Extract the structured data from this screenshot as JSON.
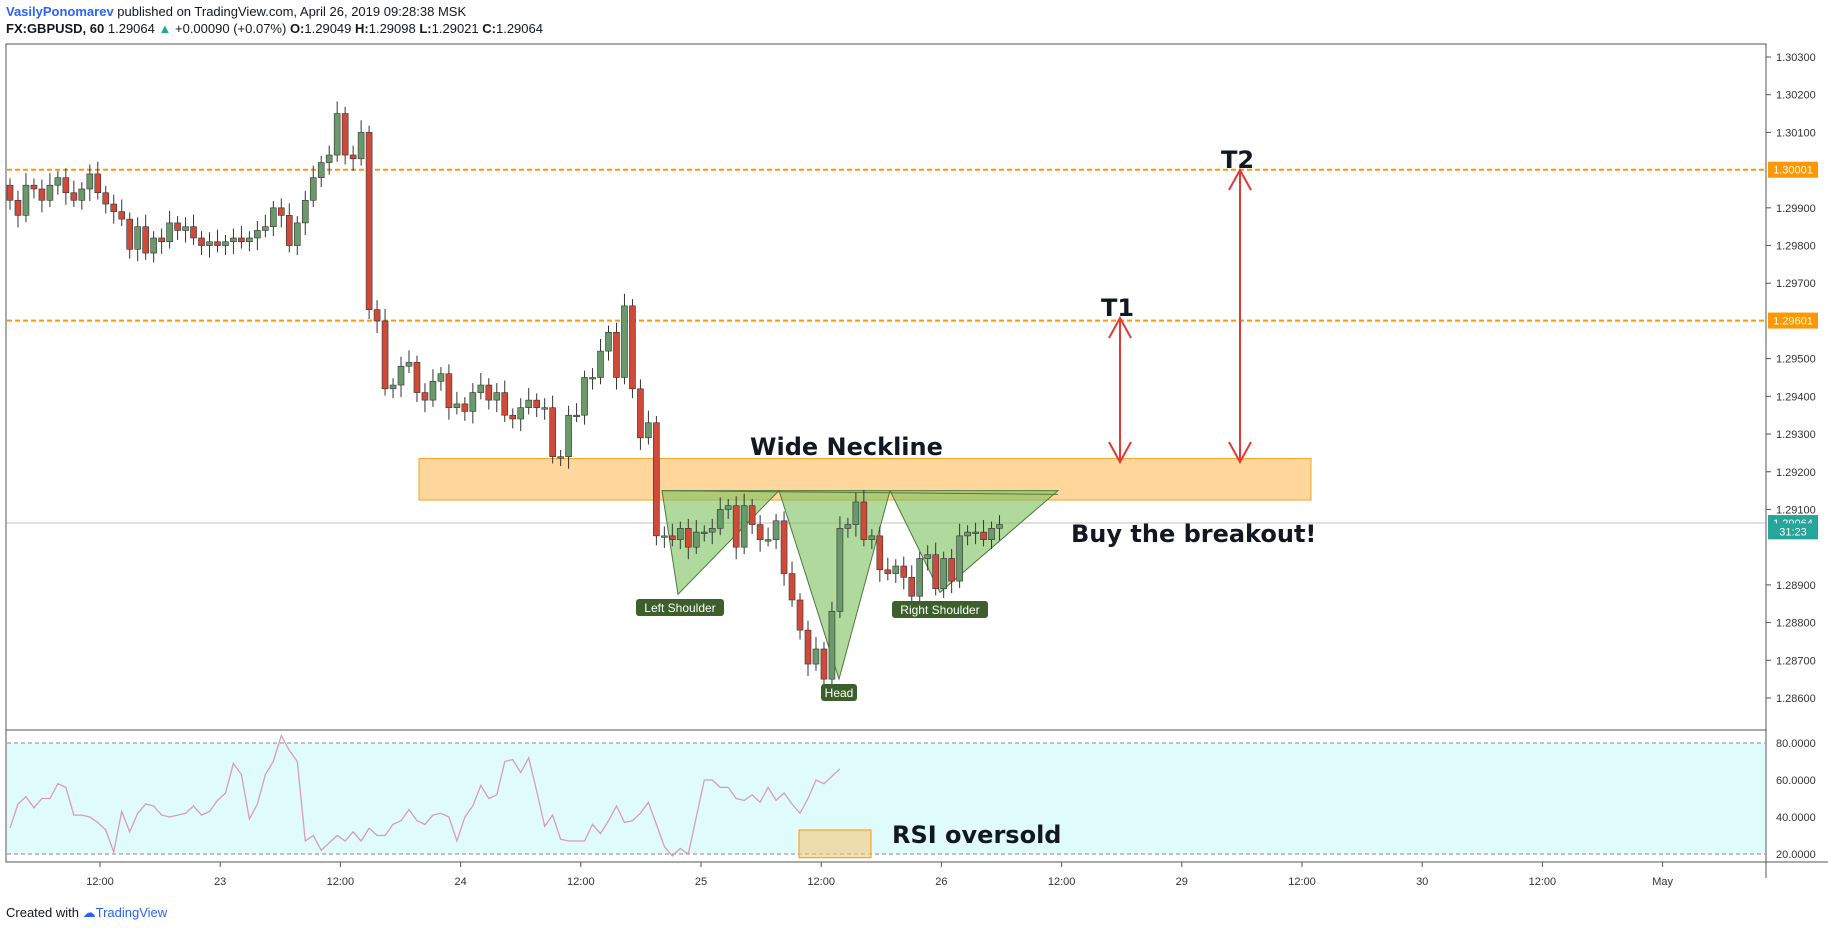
{
  "header": {
    "author": "VasilyPonomarev",
    "published_text": "published on TradingView.com, April 26, 2019 09:28:38 MSK",
    "symbol": "FX:GBPUSD, 60",
    "last": "1.29064",
    "change": "+0.00090 (+0.07%)",
    "o_label": "O:",
    "o_value": "1.29049",
    "h_label": "H:",
    "h_value": "1.29098",
    "l_label": "L:",
    "l_value": "1.29021",
    "c_label": "C:",
    "c_value": "1.29064"
  },
  "footer": {
    "created_with": "Created with",
    "brand": "TradingView"
  },
  "colors": {
    "up": "#26a69a",
    "down": "#ef5350",
    "up_body": "#6a9a6a",
    "down_body": "#d04a3a",
    "orange": "#ff9800",
    "rsi_line": "#d99ac0",
    "rsi_bg": "#e0fbfc",
    "pattern": "#7bbf5e",
    "arrow": "#e53935"
  },
  "chart_data": [
    {
      "type": "candlestick",
      "symbol": "GBPUSD",
      "timeframe": "60",
      "ylim": [
        1.2855,
        1.3034
      ],
      "x_ticks": [
        "12:00",
        "23",
        "12:00",
        "24",
        "12:00",
        "25",
        "12:00",
        "26",
        "12:00",
        "29",
        "12:00",
        "30",
        "12:00",
        "May"
      ],
      "y_ticks": [
        "1.30300",
        "1.30200",
        "1.30100",
        "1.29900",
        "1.29800",
        "1.29700",
        "1.29500",
        "1.29400",
        "1.29300",
        "1.29200",
        "1.29100",
        "1.28900",
        "1.28800",
        "1.28700",
        "1.28600"
      ],
      "price_tags": [
        {
          "label": "1.30001",
          "value": 1.30001,
          "color": "#ff9800"
        },
        {
          "label": "1.29601",
          "value": 1.29601,
          "color": "#ff9800"
        },
        {
          "label": "1.29064",
          "value": 1.29064,
          "color": "#26a69a"
        },
        {
          "label": "31:23",
          "value": 1.29042,
          "color": "#26a69a"
        }
      ],
      "closes": [
        1.2992,
        1.2988,
        1.2996,
        1.2995,
        1.2992,
        1.2996,
        1.2998,
        1.2994,
        1.2992,
        1.2995,
        1.2999,
        1.2994,
        1.2991,
        1.2989,
        1.2987,
        1.2979,
        1.2985,
        1.2978,
        1.2982,
        1.2981,
        1.2986,
        1.2984,
        1.2985,
        1.2982,
        1.298,
        1.2981,
        1.298,
        1.2981,
        1.2982,
        1.2981,
        1.2982,
        1.2984,
        1.2985,
        1.299,
        1.2988,
        1.298,
        1.2986,
        1.2992,
        1.2998,
        1.3002,
        1.3004,
        1.3015,
        1.3004,
        1.3003,
        1.301,
        1.2963,
        1.296,
        1.2942,
        1.2943,
        1.2948,
        1.2949,
        1.2941,
        1.2939,
        1.2944,
        1.2946,
        1.2937,
        1.2938,
        1.2936,
        1.2941,
        1.2943,
        1.2939,
        1.2941,
        1.2935,
        1.2934,
        1.2937,
        1.2939,
        1.2937,
        1.2937,
        1.2924,
        1.2924,
        1.2935,
        1.2935,
        1.2945,
        1.2945,
        1.2952,
        1.2957,
        1.2945,
        1.2964,
        1.2942,
        1.2929,
        1.2933,
        1.2903,
        1.2903,
        1.2902,
        1.2905,
        1.29,
        1.2904,
        1.2904,
        1.2905,
        1.291,
        1.2911,
        1.29,
        1.2911,
        1.2906,
        1.2902,
        1.2902,
        1.2907,
        1.2893,
        1.2886,
        1.2878,
        1.2869,
        1.2873,
        1.2865,
        1.2883,
        1.2905,
        1.2906,
        1.2912,
        1.2902,
        1.2903,
        1.2894,
        1.2893,
        1.2895,
        1.2892,
        1.2887,
        1.2897,
        1.2898,
        1.2889,
        1.2897,
        1.2891,
        1.2903,
        1.2904,
        1.2904,
        1.2902,
        1.2905,
        1.2906
      ]
    },
    {
      "type": "line",
      "name": "RSI",
      "ylim": [
        15,
        85
      ],
      "y_ticks": [
        "80.0000",
        "60.0000",
        "40.0000",
        "20.0000"
      ],
      "values": [
        34,
        47,
        51,
        45,
        50,
        50,
        58,
        56,
        41,
        41,
        40,
        37,
        33,
        21,
        43,
        32,
        42,
        47,
        46,
        41,
        40,
        41,
        42,
        46,
        41,
        43,
        49,
        53,
        69,
        63,
        39,
        47,
        63,
        70,
        84,
        76,
        70,
        27,
        30,
        22,
        26,
        30,
        27,
        32,
        27,
        34,
        30,
        30,
        36,
        38,
        44,
        38,
        36,
        41,
        42,
        40,
        27,
        40,
        46,
        57,
        50,
        52,
        70,
        71,
        64,
        72,
        54,
        35,
        41,
        28,
        27,
        27,
        27,
        36,
        31,
        38,
        46,
        37,
        38,
        42,
        48,
        36,
        24,
        19,
        23,
        20,
        40,
        60,
        60,
        56,
        56,
        50,
        49,
        52,
        48,
        56,
        49,
        53,
        47,
        42,
        50,
        60,
        58,
        62,
        66
      ]
    }
  ],
  "annotations": {
    "neckline": "Wide Neckline",
    "buy": "Buy the breakout!",
    "t1": "T1",
    "t2": "T2",
    "left_shoulder": "Left Shoulder",
    "head": "Head",
    "right_shoulder": "Right Shoulder",
    "rsi": "RSI oversold"
  }
}
